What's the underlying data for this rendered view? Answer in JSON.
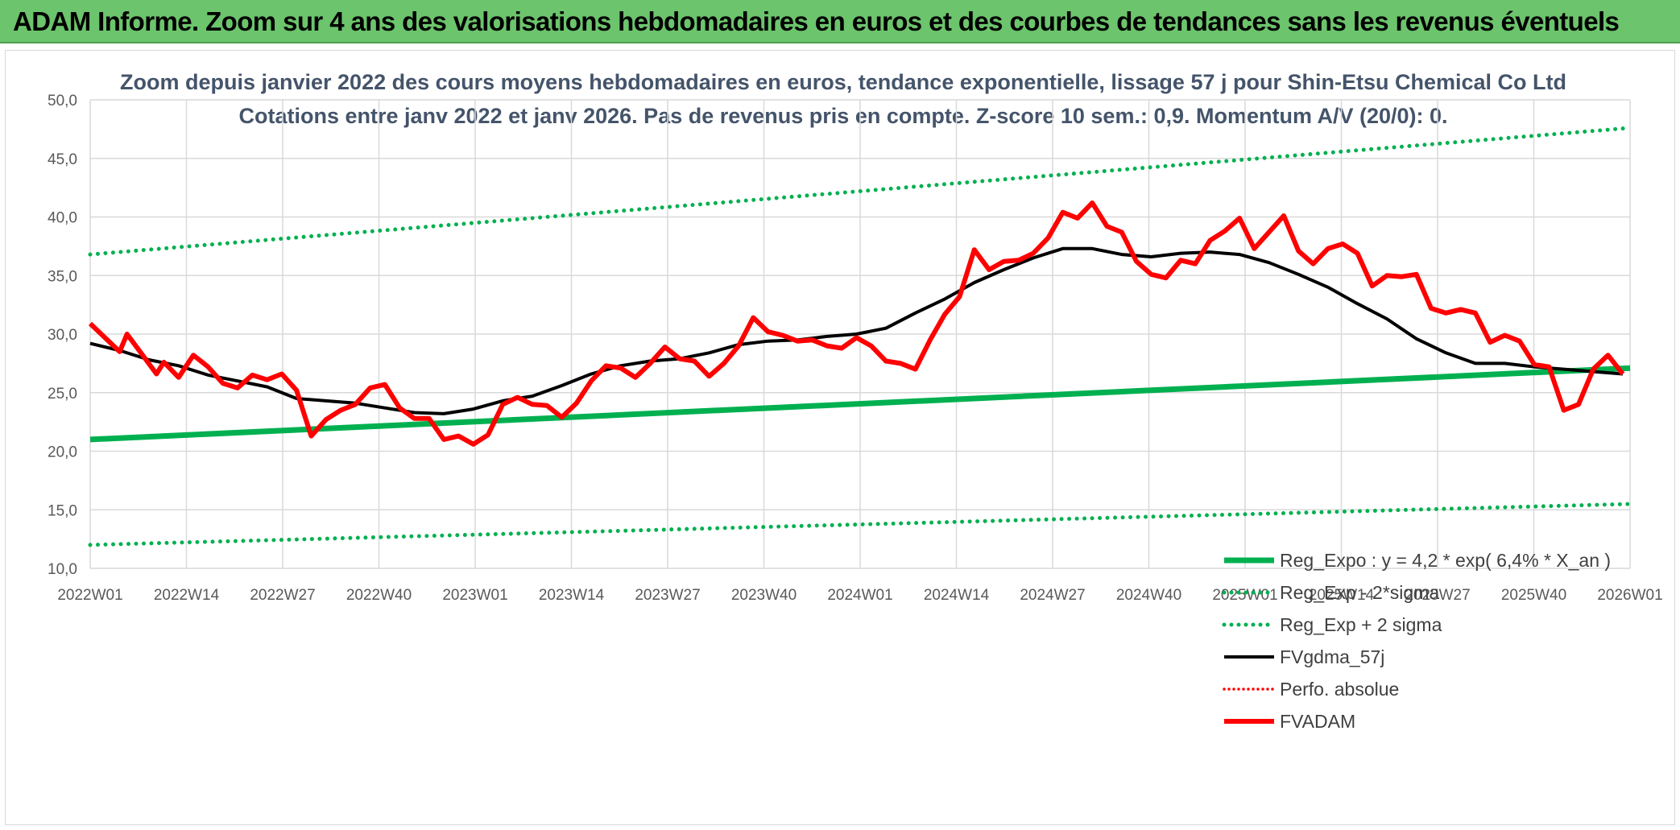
{
  "header": {
    "title": "ADAM Informe. Zoom sur 4 ans des valorisations hebdomadaires en euros et des courbes de tendances sans les revenus éventuels"
  },
  "colors": {
    "header_bg": "#6cc46c",
    "trend": "#00b050",
    "gdma": "#000000",
    "fvadam": "#ff0000",
    "perfo": "#ff0000",
    "grid": "#d9d9d9"
  },
  "chart_data": {
    "type": "line",
    "title_line1": "Zoom depuis janvier 2022 des cours moyens hebdomadaires en euros, tendance exponentielle, lissage 57 j pour Shin-Etsu Chemical Co Ltd",
    "title_line2": "Cotations entre janv 2022 et janv 2026. Pas de revenus pris en compte. Z-score 10 sem.: 0,9. Momentum A/V (20/0): 0.",
    "xlabel": "",
    "ylabel": "",
    "ylim": [
      10,
      50
    ],
    "y_ticks": [
      "10,0",
      "15,0",
      "20,0",
      "25,0",
      "30,0",
      "35,0",
      "40,0",
      "45,0",
      "50,0"
    ],
    "x_ticks": [
      "2022W01",
      "2022W14",
      "2022W27",
      "2022W40",
      "2023W01",
      "2023W14",
      "2023W27",
      "2023W40",
      "2024W01",
      "2024W14",
      "2024W27",
      "2024W40",
      "2025W01",
      "2025W14",
      "2025W27",
      "2025W40",
      "2026W01"
    ],
    "x_range_weeks": [
      0,
      209
    ],
    "grid": true,
    "legend_position": "bottom-right",
    "legend": [
      "Reg_Expo : y = 4,2 * exp( 6,4% *  X_an )",
      "Reg_Exp - 2*sigma",
      "Reg_Exp + 2 sigma",
      "FVgdma_57j",
      "Perfo. absolue",
      "FVADAM"
    ],
    "series": [
      {
        "name": "Reg_Expo : y = 4,2 * exp( 6,4% *  X_an )",
        "style": "solid-green",
        "x": [
          0,
          209
        ],
        "values": [
          21.0,
          27.1
        ]
      },
      {
        "name": "Reg_Exp - 2*sigma",
        "style": "dotted-green",
        "x": [
          0,
          209
        ],
        "values": [
          12.0,
          15.5
        ]
      },
      {
        "name": "Reg_Exp + 2 sigma",
        "style": "dotted-green",
        "x": [
          0,
          209
        ],
        "values": [
          36.8,
          47.6
        ]
      },
      {
        "name": "FVgdma_57j",
        "style": "solid-black",
        "x": [
          0,
          4,
          8,
          12,
          16,
          20,
          24,
          28,
          32,
          36,
          40,
          44,
          48,
          52,
          56,
          60,
          64,
          68,
          72,
          76,
          80,
          84,
          88,
          92,
          96,
          100,
          104,
          108,
          112,
          116,
          120,
          124,
          128,
          132,
          136,
          140,
          144,
          148,
          152,
          156,
          160,
          164,
          168,
          172,
          176,
          180,
          184,
          188,
          192,
          196,
          200,
          204,
          208
        ],
        "values": [
          29.2,
          28.6,
          27.8,
          27.3,
          26.5,
          26.0,
          25.5,
          24.5,
          24.3,
          24.1,
          23.7,
          23.3,
          23.2,
          23.6,
          24.3,
          24.7,
          25.6,
          26.6,
          27.3,
          27.7,
          27.9,
          28.4,
          29.1,
          29.4,
          29.5,
          29.8,
          30.0,
          30.5,
          31.8,
          33.0,
          34.4,
          35.5,
          36.5,
          37.3,
          37.3,
          36.8,
          36.6,
          36.9,
          37.0,
          36.8,
          36.1,
          35.1,
          34.0,
          32.6,
          31.3,
          29.6,
          28.4,
          27.5,
          27.5,
          27.2,
          27.0,
          26.8,
          26.6
        ]
      },
      {
        "name": "FVADAM",
        "style": "solid-red",
        "x": [
          0,
          2,
          4,
          5,
          7,
          9,
          10,
          12,
          14,
          16,
          18,
          20,
          22,
          24,
          26,
          28,
          30,
          32,
          34,
          36,
          38,
          40,
          42,
          44,
          46,
          48,
          50,
          52,
          54,
          56,
          58,
          60,
          62,
          64,
          66,
          68,
          70,
          72,
          74,
          76,
          78,
          80,
          82,
          84,
          86,
          88,
          90,
          92,
          94,
          96,
          98,
          100,
          102,
          104,
          106,
          108,
          110,
          112,
          114,
          116,
          118,
          120,
          122,
          124,
          126,
          128,
          130,
          132,
          134,
          136,
          138,
          140,
          142,
          144,
          146,
          148,
          150,
          152,
          154,
          156,
          158,
          160,
          162,
          164,
          166,
          168,
          170,
          172,
          174,
          176,
          178,
          180,
          182,
          184,
          186,
          188,
          190,
          192,
          194,
          196,
          198,
          200,
          202,
          204,
          206,
          208
        ],
        "values": [
          30.9,
          29.7,
          28.5,
          30.0,
          28.3,
          26.6,
          27.6,
          26.3,
          28.2,
          27.2,
          25.8,
          25.4,
          26.5,
          26.1,
          26.6,
          25.2,
          21.3,
          22.7,
          23.5,
          24.0,
          25.4,
          25.7,
          23.7,
          22.8,
          22.8,
          21.0,
          21.3,
          20.6,
          21.4,
          24.0,
          24.6,
          24.0,
          23.9,
          22.9,
          24.1,
          26.0,
          27.3,
          27.1,
          26.3,
          27.5,
          28.9,
          27.9,
          27.7,
          26.4,
          27.5,
          29.0,
          31.4,
          30.2,
          29.9,
          29.4,
          29.5,
          29.0,
          28.8,
          29.7,
          29.0,
          27.7,
          27.5,
          27.0,
          29.5,
          31.7,
          33.2,
          37.2,
          35.5,
          36.2,
          36.3,
          36.9,
          38.2,
          40.4,
          39.9,
          41.2,
          39.2,
          38.7,
          36.2,
          35.1,
          34.8,
          36.3,
          36.0,
          38.0,
          38.8,
          39.9,
          37.3,
          38.7,
          40.1,
          37.1,
          36.0,
          37.3,
          37.7,
          36.9,
          34.1,
          35.0,
          34.9,
          35.1,
          32.2,
          31.8,
          32.1,
          31.8,
          29.3,
          29.9,
          29.4,
          27.4,
          27.2,
          23.5,
          24.0,
          27.0,
          28.2,
          26.6
        ]
      }
    ]
  }
}
